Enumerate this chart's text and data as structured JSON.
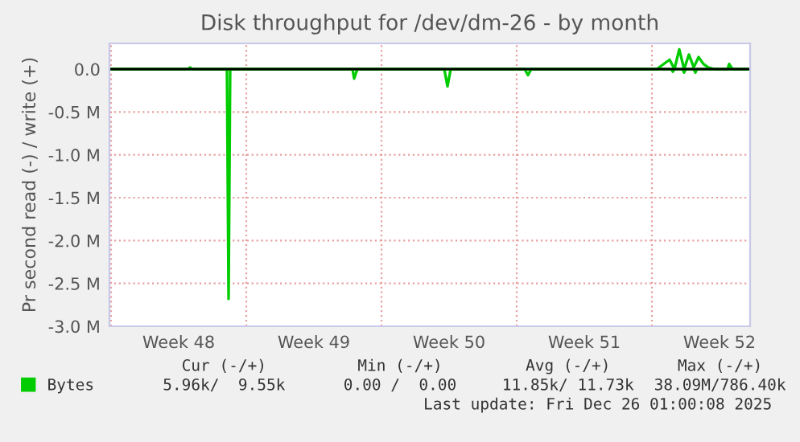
{
  "chart_data": {
    "type": "line",
    "title": "Disk throughput for /dev/dm-26 - by month",
    "ylabel": "Pr second read (-) / write (+)",
    "xlim": [
      "2025-11-23T22:00",
      "2025-12-27T02:00"
    ],
    "ylim": [
      -3.0,
      0.3
    ],
    "xticks": [
      {
        "value": "2025-11-24T00:00",
        "label": null
      },
      {
        "value": "2025-11-27T12:00",
        "label": "Week 48"
      },
      {
        "value": "2025-12-01T00:00",
        "label": null
      },
      {
        "value": "2025-12-04T12:00",
        "label": "Week 49"
      },
      {
        "value": "2025-12-08T00:00",
        "label": null
      },
      {
        "value": "2025-12-11T12:00",
        "label": "Week 50"
      },
      {
        "value": "2025-12-15T00:00",
        "label": null
      },
      {
        "value": "2025-12-18T12:00",
        "label": "Week 51"
      },
      {
        "value": "2025-12-22T00:00",
        "label": null
      },
      {
        "value": "2025-12-25T12:00",
        "label": "Week 52"
      }
    ],
    "yticks": [
      {
        "value": 0,
        "label": "0.0"
      },
      {
        "value": -0.5,
        "label": "-0.5 M"
      },
      {
        "value": -1.0,
        "label": "-1.0 M"
      },
      {
        "value": -1.5,
        "label": "-1.5 M"
      },
      {
        "value": -2.0,
        "label": "-2.0 M"
      },
      {
        "value": -2.5,
        "label": "-2.5 M"
      },
      {
        "value": -3.0,
        "label": "-3.0 M"
      }
    ],
    "grid": true,
    "legend": "bottom left",
    "marker": "none",
    "line_style": "solid",
    "ref_lines": [
      {
        "axis": "y",
        "value": 0,
        "color": "#000000",
        "line_style": "solid"
      }
    ],
    "series": [
      {
        "name": "Bytes",
        "color": "#00cc00",
        "x": [
          "2025-11-23T22:00",
          "2025-11-28T00:00",
          "2025-11-28T02:00",
          "2025-11-28T05:00",
          "2025-12-22T06:00",
          "2025-12-22T22:00",
          "2025-12-23T04:00",
          "2025-12-23T10:00",
          "2025-12-23T16:00",
          "2025-12-23T22:00",
          "2025-12-24T04:00",
          "2025-12-24T10:00",
          "2025-12-24T16:00",
          "2025-12-24T22:00",
          "2025-12-25T06:00",
          "2025-12-25T22:00",
          "2025-12-26T00:00",
          "2025-12-26T04:00",
          "2025-12-27T02:00"
        ],
        "values": [
          0,
          0,
          0.02,
          0,
          0,
          0.11,
          0,
          0.23,
          0,
          0.17,
          0.02,
          0.14,
          0.06,
          0.02,
          0,
          0,
          0.06,
          0,
          0
        ]
      },
      {
        "color": "#00cc00",
        "x": [
          "2025-11-23T22:00",
          "2025-11-30T00:00",
          "2025-11-30T02:00",
          "2025-11-30T04:00",
          "2025-12-06T12:00",
          "2025-12-06T14:00",
          "2025-12-06T18:00",
          "2025-12-11T06:00",
          "2025-12-11T10:00",
          "2025-12-11T14:00",
          "2025-12-15T10:00",
          "2025-12-15T14:00",
          "2025-12-15T18:00",
          "2025-12-23T00:00",
          "2025-12-23T02:00",
          "2025-12-23T04:00",
          "2025-12-23T14:00",
          "2025-12-23T16:00",
          "2025-12-23T18:00",
          "2025-12-24T04:00",
          "2025-12-24T06:00",
          "2025-12-24T08:00",
          "2025-12-27T02:00"
        ],
        "values": [
          0,
          0,
          -2.68,
          0,
          0,
          -0.11,
          0,
          0,
          -0.2,
          0,
          0,
          -0.07,
          0,
          0,
          -0.03,
          0,
          0,
          -0.04,
          0,
          0,
          -0.04,
          0,
          0
        ]
      }
    ],
    "annotations": [
      "Cur (-/+)",
      "Min (-/+)",
      "Avg (-/+)",
      "Max (-/+)",
      "5.96k/  9.55k",
      "0.00 /  0.00",
      "11.85k/ 11.73k",
      "38.09M/786.40k",
      "Last update: Fri Dec 26 01:00:08 2025"
    ]
  }
}
